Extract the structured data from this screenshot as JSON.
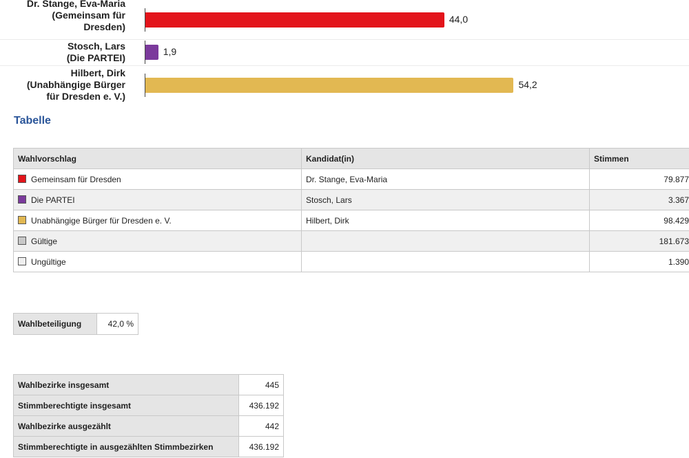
{
  "chart_data": {
    "type": "bar",
    "orientation": "horizontal",
    "categories": [
      [
        "Dr. Stange, Eva-Maria",
        "(Gemeinsam für",
        "Dresden)"
      ],
      [
        "Stosch, Lars",
        "(Die PARTEI)"
      ],
      [
        "Hilbert, Dirk",
        "(Unabhängige Bürger",
        "für Dresden e. V.)"
      ]
    ],
    "values": [
      44.0,
      1.9,
      54.2
    ],
    "value_labels": [
      "44,0",
      "1,9",
      "54,2"
    ],
    "colors": [
      "#e3141b",
      "#7b3a9c",
      "#e2b852"
    ],
    "xlim": [
      0,
      79
    ],
    "grid": false
  },
  "heading": "Tabelle",
  "results_table": {
    "headers": [
      "Wahlvorschlag",
      "Kandidat(in)",
      "Stimmen"
    ],
    "rows": [
      {
        "party": "Gemeinsam für Dresden",
        "candidate": "Dr. Stange, Eva-Maria",
        "votes": "79.877",
        "color": "#e3141b"
      },
      {
        "party": "Die PARTEI",
        "candidate": "Stosch, Lars",
        "votes": "3.367",
        "color": "#7b3a9c"
      },
      {
        "party": "Unabhängige Bürger für Dresden e. V.",
        "candidate": "Hilbert, Dirk",
        "votes": "98.429",
        "color": "#e2b852"
      },
      {
        "party": "Gültige",
        "candidate": "",
        "votes": "181.673",
        "color": "#c8c8c8"
      },
      {
        "party": "Ungültige",
        "candidate": "",
        "votes": "1.390",
        "color": "#efefef"
      }
    ]
  },
  "turnout": {
    "label": "Wahlbeteiligung",
    "value": "42,0 %"
  },
  "stats": [
    {
      "label": "Wahlbezirke insgesamt",
      "value": "445"
    },
    {
      "label": "Stimmberechtigte insgesamt",
      "value": "436.192"
    },
    {
      "label": "Wahlbezirke ausgezählt",
      "value": "442"
    },
    {
      "label": "Stimmberechtigte in ausgezählten Stimmbezirken",
      "value": "436.192"
    }
  ]
}
